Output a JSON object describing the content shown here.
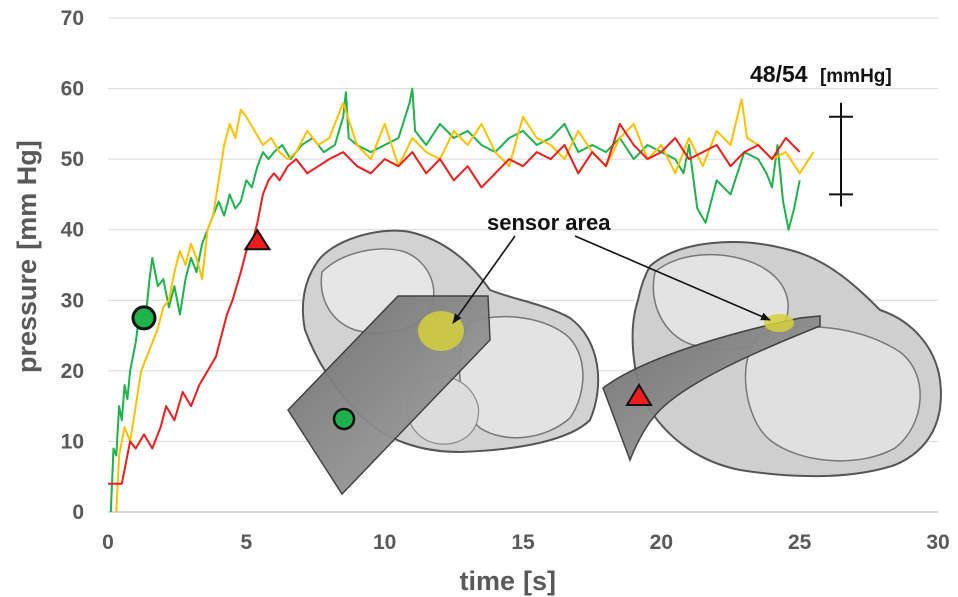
{
  "chart_data": {
    "type": "line",
    "xlabel": "time",
    "xlabel_unit": "[s]",
    "ylabel": "pressure",
    "ylabel_unit": "[mm Hg]",
    "xlim": [
      0,
      30
    ],
    "ylim": [
      0,
      70
    ],
    "xticks": [
      0,
      5,
      10,
      15,
      20,
      25,
      30
    ],
    "yticks": [
      0,
      10,
      20,
      30,
      40,
      50,
      60,
      70
    ],
    "grid": "horizontal",
    "colors": {
      "green": "#1db34a",
      "yellow": "#ffc000",
      "red": "#ee1c1c"
    },
    "series": [
      {
        "color": "#1db34a",
        "x": [
          0.1,
          0.2,
          0.3,
          0.4,
          0.5,
          0.6,
          0.7,
          0.8,
          0.9,
          1.0,
          1.1,
          1.2,
          1.3,
          1.4,
          1.5,
          1.6,
          1.8,
          2.0,
          2.2,
          2.4,
          2.6,
          2.8,
          3.0,
          3.2,
          3.4,
          3.6,
          3.8,
          4.0,
          4.2,
          4.4,
          4.6,
          4.8,
          5.0,
          5.2,
          5.4,
          5.6,
          5.8,
          6.0,
          6.3,
          6.6,
          7.0,
          7.4,
          7.8,
          8.2,
          8.5,
          8.6,
          8.7,
          9.0,
          9.5,
          10.0,
          10.5,
          10.9,
          11.0,
          11.1,
          11.5,
          12.0,
          12.5,
          13.0,
          13.5,
          14.0,
          14.5,
          15.0,
          15.5,
          16.0,
          16.5,
          17.0,
          17.5,
          18.0,
          18.5,
          19.0,
          19.5,
          20.0,
          20.5,
          20.8,
          21.0,
          21.3,
          21.6,
          22.0,
          22.5,
          23.0,
          23.5,
          23.8,
          24.0,
          24.2,
          24.4,
          24.6,
          24.8,
          25.0
        ],
        "y": [
          0,
          9,
          8,
          15,
          13,
          18,
          16,
          20,
          22,
          24,
          27,
          29,
          27,
          29,
          33,
          36,
          32,
          33,
          29,
          32,
          28,
          33,
          36,
          34,
          38,
          40,
          42,
          44,
          42,
          45,
          43,
          44,
          47,
          46,
          49,
          51,
          50,
          51,
          52,
          50,
          52,
          53,
          51,
          52,
          56,
          59.5,
          53,
          52,
          51,
          52,
          53,
          58,
          60,
          54,
          52,
          55,
          53,
          54,
          52,
          51,
          53,
          54,
          52,
          53,
          55,
          51,
          52,
          51,
          53,
          50,
          52,
          51,
          50,
          48,
          52,
          43,
          41,
          47,
          45,
          51,
          50,
          48,
          46,
          52,
          44,
          40,
          43,
          47
        ]
      },
      {
        "color": "#ffc000",
        "x": [
          0.3,
          0.4,
          0.6,
          0.8,
          1.0,
          1.2,
          1.4,
          1.6,
          1.8,
          2.0,
          2.2,
          2.4,
          2.6,
          2.8,
          3.0,
          3.2,
          3.4,
          3.6,
          3.8,
          4.0,
          4.2,
          4.4,
          4.6,
          4.8,
          5.0,
          5.3,
          5.6,
          5.9,
          6.2,
          6.5,
          6.8,
          7.2,
          7.6,
          8.0,
          8.5,
          9.0,
          9.5,
          10.0,
          10.5,
          11.0,
          11.5,
          12.0,
          12.5,
          13.0,
          13.5,
          14.0,
          14.5,
          15.0,
          15.5,
          16.0,
          16.5,
          17.0,
          17.5,
          18.0,
          18.5,
          19.0,
          19.5,
          20.0,
          20.5,
          21.0,
          21.5,
          22.0,
          22.5,
          22.9,
          23.1,
          23.5,
          24.0,
          24.5,
          25.0,
          25.5
        ],
        "y": [
          0,
          8,
          12,
          10,
          15,
          20,
          22,
          24,
          26,
          29,
          30,
          34,
          37,
          35,
          38,
          36,
          33,
          40,
          42,
          47,
          52,
          55,
          53,
          57,
          56,
          54,
          52,
          53,
          51,
          50,
          51,
          54,
          52,
          53,
          58,
          52,
          50,
          55,
          49,
          53,
          51,
          50,
          54,
          52,
          55,
          51,
          49,
          56,
          53,
          52,
          50,
          54,
          51,
          49,
          53,
          55,
          50,
          52,
          48,
          53,
          49,
          54,
          52,
          58.5,
          53,
          52,
          50,
          51,
          48,
          51
        ]
      },
      {
        "color": "#ee1c1c",
        "x": [
          0,
          0.5,
          0.8,
          1.0,
          1.3,
          1.6,
          1.9,
          2.1,
          2.4,
          2.7,
          3.0,
          3.3,
          3.6,
          3.9,
          4.1,
          4.3,
          4.5,
          4.8,
          5.0,
          5.2,
          5.4,
          5.6,
          5.8,
          6.0,
          6.2,
          6.5,
          6.8,
          7.2,
          7.6,
          8.0,
          8.5,
          9.0,
          9.5,
          10.0,
          10.5,
          11.0,
          11.5,
          12.0,
          12.5,
          13.0,
          13.5,
          14.0,
          14.5,
          15.0,
          15.5,
          16.0,
          16.5,
          17.0,
          17.5,
          18.0,
          18.5,
          19.0,
          19.5,
          20.0,
          20.5,
          21.0,
          21.5,
          22.0,
          22.5,
          23.0,
          23.5,
          24.0,
          24.5,
          25.0
        ],
        "y": [
          4,
          4,
          10,
          9,
          11,
          9,
          12,
          15,
          13,
          17,
          15,
          18,
          20,
          22,
          25,
          28,
          30,
          34,
          37,
          38,
          41,
          45,
          47,
          48,
          47,
          49,
          50,
          48,
          49,
          50,
          51,
          49,
          48,
          50,
          49,
          51,
          48,
          50,
          47,
          49,
          46,
          48,
          50,
          49,
          51,
          50,
          52,
          48,
          51,
          49,
          55,
          52,
          50,
          51,
          53,
          50,
          51,
          52,
          49,
          51,
          52,
          50,
          53,
          51
        ]
      }
    ],
    "annotations": {
      "range_label_value": "48/54",
      "range_label_unit": "[mmHg]",
      "range_low": 45,
      "range_high": 56,
      "sensor_area_label": "sensor area",
      "green_circle_marker": {
        "x": 1.3,
        "y": 27.5
      },
      "red_triangle_marker": {
        "x": 5.4,
        "y": 38.5
      }
    }
  }
}
